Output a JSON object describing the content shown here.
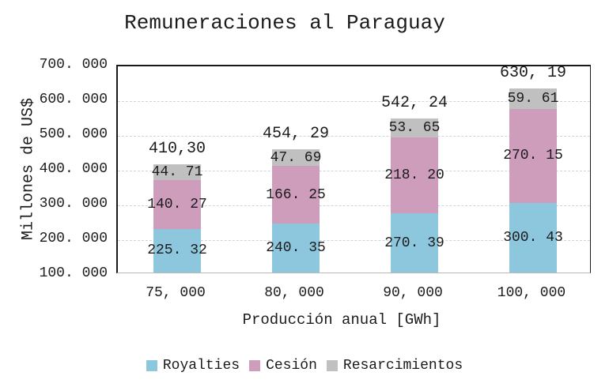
{
  "title": "Remuneraciones al Paraguay",
  "y_axis": {
    "title": "Millones de US$"
  },
  "x_axis": {
    "title": "Producción anual [GWh]"
  },
  "legend": [
    {
      "label": "Royalties",
      "color": "#8CC7DE"
    },
    {
      "label": "Cesión",
      "color": "#CD9DBB"
    },
    {
      "label": "Resarcimientos",
      "color": "#C0C0C0"
    }
  ],
  "chart_data": {
    "type": "bar",
    "stacked": true,
    "title": "Remuneraciones al Paraguay",
    "xlabel": "Producción anual [GWh]",
    "ylabel": "Millones de US$",
    "categories": [
      "75, 000",
      "80, 000",
      "90, 000",
      "100, 000"
    ],
    "series": [
      {
        "name": "Royalties",
        "color": "#8CC7DE",
        "values": [
          225.32,
          240.35,
          270.39,
          300.43
        ],
        "labels": [
          "225. 32",
          "240. 35",
          "270. 39",
          "300. 43"
        ]
      },
      {
        "name": "Cesión",
        "color": "#CD9DBB",
        "values": [
          140.27,
          166.25,
          218.2,
          270.15
        ],
        "labels": [
          "140. 27",
          "166. 25",
          "218. 20",
          "270. 15"
        ]
      },
      {
        "name": "Resarcimientos",
        "color": "#C0C0C0",
        "values": [
          44.71,
          47.69,
          53.65,
          59.61
        ],
        "labels": [
          "44. 71",
          "47. 69",
          "53. 65",
          "59. 61"
        ]
      }
    ],
    "totals": {
      "values": [
        410.3,
        454.29,
        542.24,
        630.19
      ],
      "labels": [
        "410,30",
        "454, 29",
        "542, 24",
        "630, 19"
      ]
    },
    "ylim": [
      100,
      700
    ],
    "y_ticks": [
      {
        "value": 700,
        "label": "700. 000"
      },
      {
        "value": 600,
        "label": "600. 000"
      },
      {
        "value": 500,
        "label": "500. 000"
      },
      {
        "value": 400,
        "label": "400. 000"
      },
      {
        "value": 300,
        "label": "300. 000"
      },
      {
        "value": 200,
        "label": "200. 000"
      },
      {
        "value": 100,
        "label": "100. 000"
      }
    ],
    "grid": "horizontal-dashed",
    "legend_position": "bottom"
  }
}
